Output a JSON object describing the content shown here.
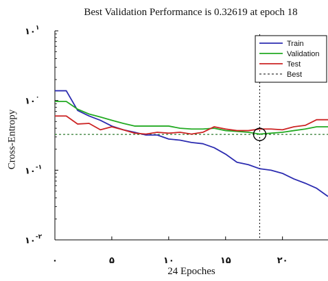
{
  "chart_data": {
    "type": "line",
    "title": "Best Validation  Performance is 0.32619 at epoch 18",
    "xlabel": "24 Epoches",
    "ylabel": "Cross-Entropy",
    "y_scale": "log",
    "xlim": [
      0,
      24
    ],
    "ylim": [
      0.01,
      10
    ],
    "x_ticks": [
      {
        "value": 0,
        "label": "۰"
      },
      {
        "value": 5,
        "label": "۵"
      },
      {
        "value": 10,
        "label": "۱۰"
      },
      {
        "value": 15,
        "label": "۱۵"
      },
      {
        "value": 20,
        "label": "۲۰"
      }
    ],
    "y_ticks": [
      {
        "value": 10,
        "label": "۱۰",
        "exp": "۱"
      },
      {
        "value": 1,
        "label": "۱۰",
        "exp": "۰"
      },
      {
        "value": 0.1,
        "label": "۱۰",
        "exp": "-۱"
      },
      {
        "value": 0.01,
        "label": "۱۰",
        "exp": "-۲"
      }
    ],
    "x": [
      0,
      1,
      2,
      3,
      4,
      5,
      6,
      7,
      8,
      9,
      10,
      11,
      12,
      13,
      14,
      15,
      16,
      17,
      18,
      19,
      20,
      21,
      22,
      23,
      24
    ],
    "series": [
      {
        "name": "Train",
        "color": "#2b2bb0",
        "values": [
          1.38,
          1.38,
          0.72,
          0.6,
          0.52,
          0.43,
          0.38,
          0.35,
          0.32,
          0.32,
          0.28,
          0.27,
          0.25,
          0.24,
          0.21,
          0.17,
          0.13,
          0.12,
          0.105,
          0.1,
          0.09,
          0.075,
          0.065,
          0.055,
          0.042
        ]
      },
      {
        "name": "Validation",
        "color": "#22aa22",
        "values": [
          0.97,
          0.97,
          0.75,
          0.64,
          0.58,
          0.52,
          0.47,
          0.43,
          0.43,
          0.43,
          0.43,
          0.4,
          0.39,
          0.39,
          0.4,
          0.37,
          0.36,
          0.35,
          0.33,
          0.34,
          0.35,
          0.37,
          0.39,
          0.42,
          0.42
        ]
      },
      {
        "name": "Test",
        "color": "#cc2222",
        "values": [
          0.6,
          0.6,
          0.46,
          0.47,
          0.38,
          0.42,
          0.38,
          0.34,
          0.33,
          0.35,
          0.34,
          0.35,
          0.33,
          0.35,
          0.42,
          0.39,
          0.37,
          0.37,
          0.39,
          0.39,
          0.38,
          0.42,
          0.44,
          0.53,
          0.53
        ]
      }
    ],
    "best": {
      "name": "Best",
      "epoch": 18,
      "value": 0.32619,
      "line_color": "#2d7a2d"
    },
    "legend_position": "top-right",
    "grid": false
  }
}
